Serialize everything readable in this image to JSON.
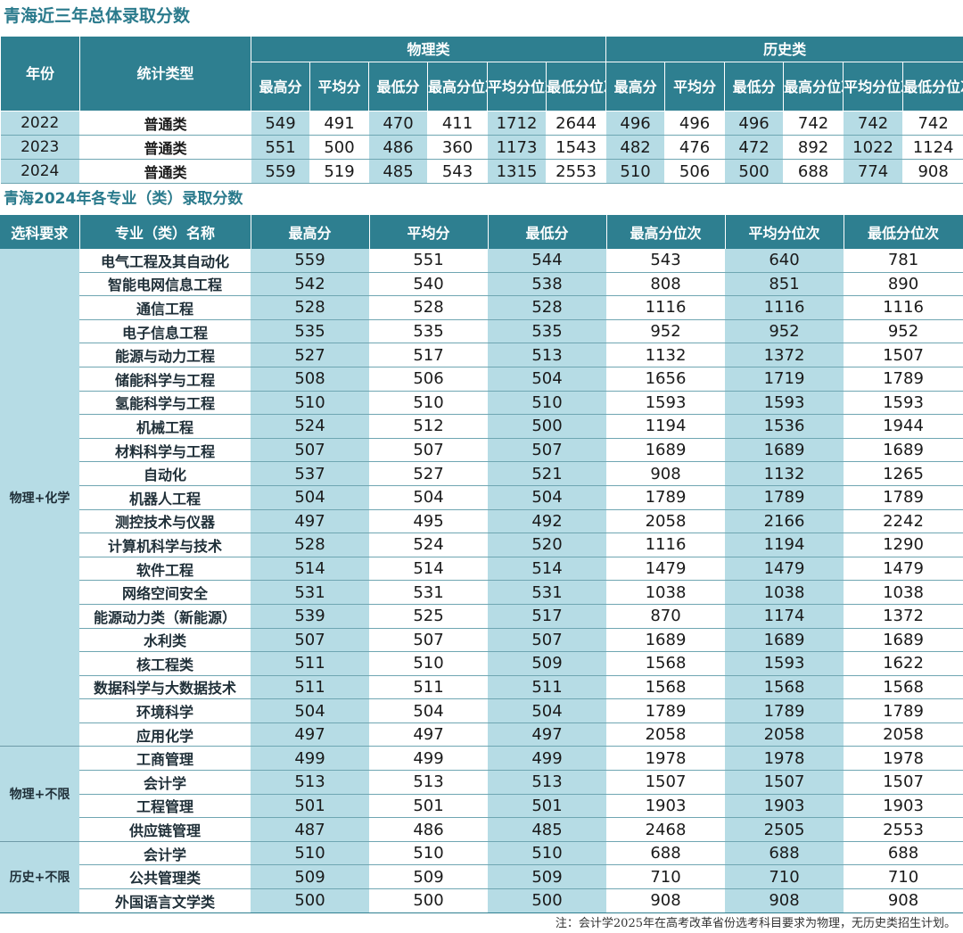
{
  "title1": "青海近三年总体录取分数",
  "title2": "青海2024年各专业（类）录取分数",
  "table1": {
    "h_year": "年份",
    "h_type": "统计类型",
    "h_phys": "物理类",
    "h_hist": "历史类",
    "sub_headers": [
      "最高分",
      "平均分",
      "最低分",
      "最高分位次",
      "平均分位次",
      "最低分位次"
    ],
    "rows": [
      {
        "year": "2022",
        "type": "普通类",
        "phys": [
          "549",
          "491",
          "470",
          "411",
          "1712",
          "2644"
        ],
        "hist": [
          "496",
          "496",
          "496",
          "742",
          "742",
          "742"
        ]
      },
      {
        "year": "2023",
        "type": "普通类",
        "phys": [
          "551",
          "500",
          "486",
          "360",
          "1173",
          "1543"
        ],
        "hist": [
          "482",
          "476",
          "472",
          "892",
          "1022",
          "1124"
        ]
      },
      {
        "year": "2024",
        "type": "普通类",
        "phys": [
          "559",
          "519",
          "485",
          "543",
          "1315",
          "2553"
        ],
        "hist": [
          "510",
          "506",
          "500",
          "688",
          "774",
          "908"
        ]
      }
    ]
  },
  "table2": {
    "headers": [
      "选科要求",
      "专业（类）名称",
      "最高分",
      "平均分",
      "最低分",
      "最高分位次",
      "平均分位次",
      "最低分位次"
    ],
    "groups": [
      {
        "subject": "物理+化学",
        "rows": [
          [
            "电气工程及其自动化",
            "559",
            "551",
            "544",
            "543",
            "640",
            "781"
          ],
          [
            "智能电网信息工程",
            "542",
            "540",
            "538",
            "808",
            "851",
            "890"
          ],
          [
            "通信工程",
            "528",
            "528",
            "528",
            "1116",
            "1116",
            "1116"
          ],
          [
            "电子信息工程",
            "535",
            "535",
            "535",
            "952",
            "952",
            "952"
          ],
          [
            "能源与动力工程",
            "527",
            "517",
            "513",
            "1132",
            "1372",
            "1507"
          ],
          [
            "储能科学与工程",
            "508",
            "506",
            "504",
            "1656",
            "1719",
            "1789"
          ],
          [
            "氢能科学与工程",
            "510",
            "510",
            "510",
            "1593",
            "1593",
            "1593"
          ],
          [
            "机械工程",
            "524",
            "512",
            "500",
            "1194",
            "1536",
            "1944"
          ],
          [
            "材料科学与工程",
            "507",
            "507",
            "507",
            "1689",
            "1689",
            "1689"
          ],
          [
            "自动化",
            "537",
            "527",
            "521",
            "908",
            "1132",
            "1265"
          ],
          [
            "机器人工程",
            "504",
            "504",
            "504",
            "1789",
            "1789",
            "1789"
          ],
          [
            "测控技术与仪器",
            "497",
            "495",
            "492",
            "2058",
            "2166",
            "2242"
          ],
          [
            "计算机科学与技术",
            "528",
            "524",
            "520",
            "1116",
            "1194",
            "1290"
          ],
          [
            "软件工程",
            "514",
            "514",
            "514",
            "1479",
            "1479",
            "1479"
          ],
          [
            "网络空间安全",
            "531",
            "531",
            "531",
            "1038",
            "1038",
            "1038"
          ],
          [
            "能源动力类（新能源）",
            "539",
            "525",
            "517",
            "870",
            "1174",
            "1372"
          ],
          [
            "水利类",
            "507",
            "507",
            "507",
            "1689",
            "1689",
            "1689"
          ],
          [
            "核工程类",
            "511",
            "510",
            "509",
            "1568",
            "1593",
            "1622"
          ],
          [
            "数据科学与大数据技术",
            "511",
            "511",
            "511",
            "1568",
            "1568",
            "1568"
          ],
          [
            "环境科学",
            "504",
            "504",
            "504",
            "1789",
            "1789",
            "1789"
          ],
          [
            "应用化学",
            "497",
            "497",
            "497",
            "2058",
            "2058",
            "2058"
          ]
        ]
      },
      {
        "subject": "物理+不限",
        "rows": [
          [
            "工商管理",
            "499",
            "499",
            "499",
            "1978",
            "1978",
            "1978"
          ],
          [
            "会计学",
            "513",
            "513",
            "513",
            "1507",
            "1507",
            "1507"
          ],
          [
            "工程管理",
            "501",
            "501",
            "501",
            "1903",
            "1903",
            "1903"
          ],
          [
            "供应链管理",
            "487",
            "486",
            "485",
            "2468",
            "2505",
            "2553"
          ]
        ]
      },
      {
        "subject": "历史+不限",
        "rows": [
          [
            "会计学",
            "510",
            "510",
            "510",
            "688",
            "688",
            "688"
          ],
          [
            "公共管理类",
            "509",
            "509",
            "509",
            "710",
            "710",
            "710"
          ],
          [
            "外国语言文学类",
            "500",
            "500",
            "500",
            "908",
            "908",
            "908"
          ]
        ]
      }
    ]
  },
  "note": "注：会计学2025年在高考改革省份选考科目要求为物理，无历史类招生计划。",
  "colors": {
    "header": "#2e7f90",
    "shade": "#b6dce5",
    "title": "#2a7a8c"
  }
}
